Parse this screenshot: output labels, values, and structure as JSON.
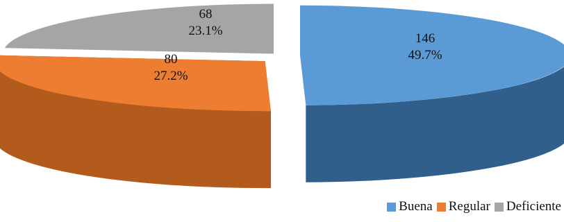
{
  "chart_data": {
    "type": "pie",
    "style": "3d-exploded",
    "title": "",
    "categories": [
      "Buena",
      "Regular",
      "Deficiente"
    ],
    "values": [
      146,
      80,
      68
    ],
    "percent_labels": [
      "49.7%",
      "27.2%",
      "23.1%"
    ],
    "colors": [
      "#5b9bd5",
      "#ed7d31",
      "#a5a5a5"
    ],
    "side_colors": [
      "#2f5f8a",
      "#b35a1d",
      "#6e6e6e"
    ],
    "legend": {
      "position": "bottom-right",
      "entries": [
        "Buena",
        "Regular",
        "Deficiente"
      ]
    }
  }
}
